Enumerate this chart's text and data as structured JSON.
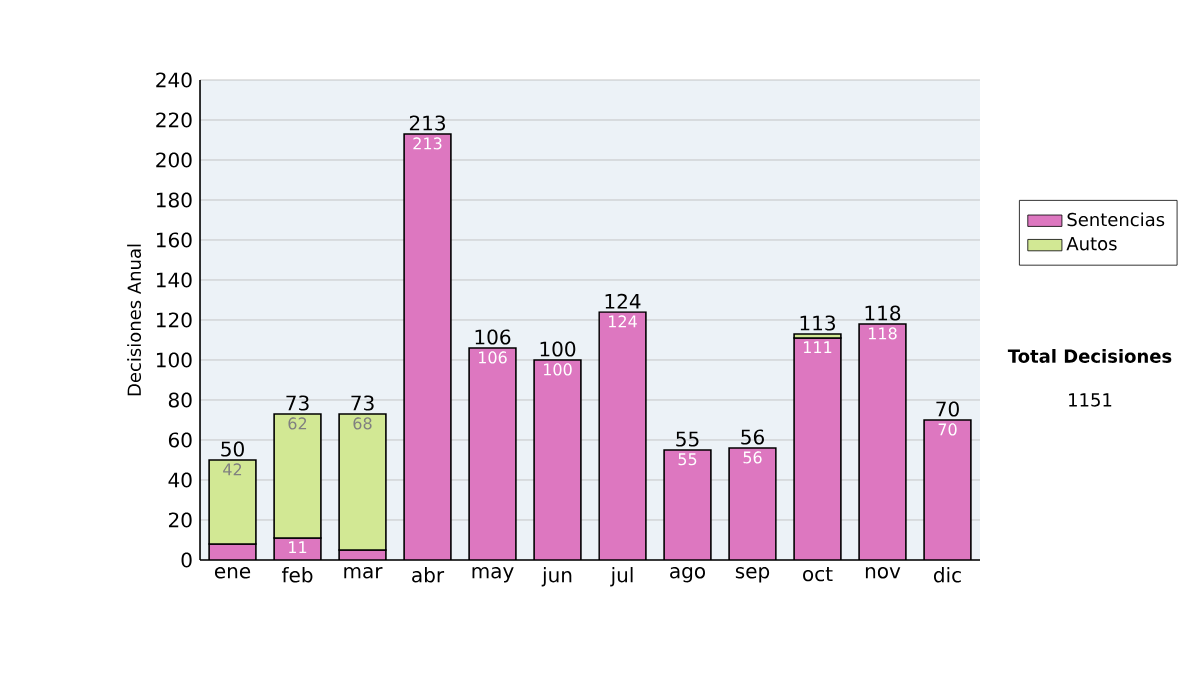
{
  "chart_data": {
    "type": "bar",
    "stacked": true,
    "ylabel": "Decisiones Anual",
    "categories": [
      "ene",
      "feb",
      "mar",
      "abr",
      "may",
      "jun",
      "jul",
      "ago",
      "sep",
      "oct",
      "nov",
      "dic"
    ],
    "series": [
      {
        "name": "Sentencias",
        "color": "#dd77c0",
        "values": [
          8,
          11,
          5,
          213,
          106,
          100,
          124,
          55,
          56,
          111,
          118,
          70
        ],
        "value_labels": [
          null,
          "11",
          null,
          "213",
          "106",
          "100",
          "124",
          "55",
          "56",
          "111",
          "118",
          "70"
        ]
      },
      {
        "name": "Autos",
        "color": "#d2e894",
        "values": [
          42,
          62,
          68,
          null,
          null,
          null,
          null,
          null,
          null,
          2,
          null,
          null
        ],
        "value_labels": [
          "42",
          "62",
          "68",
          null,
          null,
          null,
          null,
          null,
          null,
          null,
          null,
          null
        ]
      }
    ],
    "totals": [
      "50",
      "73",
      "73",
      "213",
      "106",
      "100",
      "124",
      "55",
      "56",
      "113",
      "118",
      "70"
    ],
    "ylim": [
      0,
      240
    ],
    "yticks": [
      0,
      20,
      40,
      60,
      80,
      100,
      120,
      140,
      160,
      180,
      200,
      220,
      240
    ],
    "grid": "y",
    "legend": "right",
    "annotations": [
      "Total Decisiones",
      "1151"
    ]
  }
}
